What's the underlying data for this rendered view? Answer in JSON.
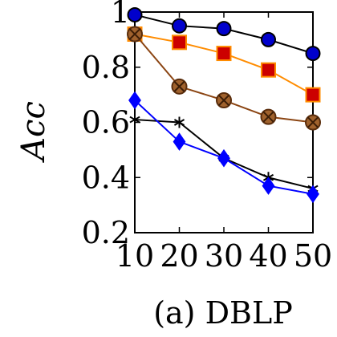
{
  "chart_data": {
    "type": "line",
    "caption": "(a) DBLP",
    "ylabel": "Acc",
    "xlabel": "",
    "x": [
      10,
      20,
      30,
      40,
      50
    ],
    "xlim": [
      10,
      50
    ],
    "ylim": [
      0.2,
      1.0
    ],
    "xticks": [
      "10",
      "20",
      "30",
      "40",
      "50"
    ],
    "yticks": [
      "0.2",
      "0.4",
      "0.6",
      "0.8",
      "1"
    ],
    "ytick_values": [
      0.2,
      0.4,
      0.6,
      0.8,
      1.0
    ],
    "grid": false,
    "series": [
      {
        "values": [
          0.99,
          0.95,
          0.94,
          0.9,
          0.85
        ],
        "color": "#000000",
        "fill": "#0000cc",
        "marker": "circle"
      },
      {
        "values": [
          0.92,
          0.89,
          0.85,
          0.79,
          0.7
        ],
        "color": "#ff8c00",
        "fill": "#cc0000",
        "marker": "square"
      },
      {
        "values": [
          0.92,
          0.73,
          0.68,
          0.62,
          0.6
        ],
        "color": "#8b4513",
        "fill": "#a0622d",
        "marker": "circle-x"
      },
      {
        "values": [
          0.61,
          0.6,
          0.47,
          0.4,
          0.36
        ],
        "color": "#000000",
        "fill": "#000000",
        "marker": "star"
      },
      {
        "values": [
          0.68,
          0.53,
          0.47,
          0.37,
          0.34
        ],
        "color": "#0000ff",
        "fill": "#0000ff",
        "marker": "diamond"
      }
    ]
  }
}
